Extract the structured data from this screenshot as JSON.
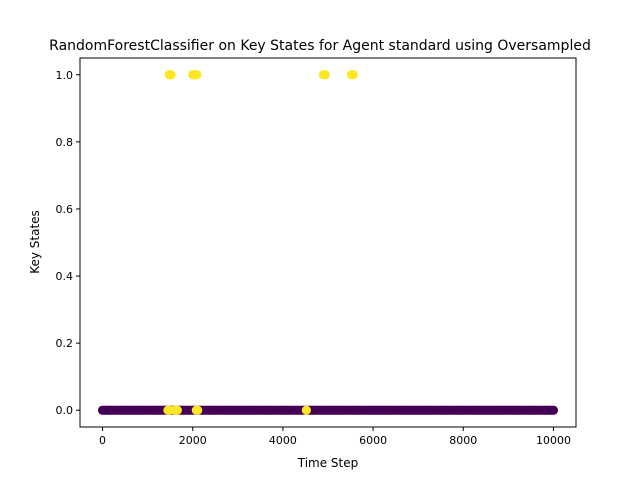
{
  "chart_data": {
    "type": "scatter",
    "title": "RandomForestClassifier on Key States for Agent standard using Oversampled",
    "xlabel": "Time Step",
    "ylabel": "Key States",
    "xlim": [
      -500,
      10500
    ],
    "ylim": [
      -0.05,
      1.05
    ],
    "xticks": [
      0,
      2000,
      4000,
      6000,
      8000,
      10000
    ],
    "yticks": [
      0.0,
      0.2,
      0.4,
      0.6,
      0.8,
      1.0
    ],
    "xtick_labels": [
      "0",
      "2000",
      "4000",
      "6000",
      "8000",
      "10000"
    ],
    "ytick_labels": [
      "0.0",
      "0.2",
      "0.4",
      "0.6",
      "0.8",
      "1.0"
    ],
    "grid": false,
    "legend": false,
    "colors": {
      "class_0": "#440154",
      "class_1": "#fde725"
    },
    "series": [
      {
        "x": [
          1480,
          1520,
          2000,
          2030,
          2060,
          2090,
          4900,
          4940,
          5520,
          5560
        ],
        "y": [
          1,
          1,
          1,
          1,
          1,
          1,
          1,
          1,
          1,
          1
        ],
        "color": "#fde725"
      },
      {
        "x_range": [
          0,
          10000
        ],
        "y": 0,
        "color": "#440154"
      },
      {
        "x": [
          1450,
          1490,
          1600,
          1640,
          1660,
          2080,
          2110,
          4520
        ],
        "y": [
          0,
          0,
          0,
          0,
          0,
          0,
          0,
          0
        ],
        "color": "#fde725"
      }
    ]
  }
}
